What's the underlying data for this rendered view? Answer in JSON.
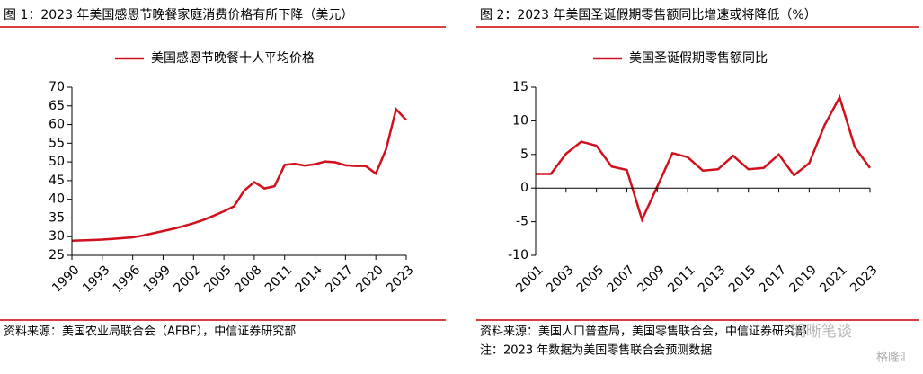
{
  "chart_data": [
    {
      "type": "line",
      "title": "图 1：2023 年美国感恩节晚餐家庭消费价格有所下降（美元）",
      "x": [
        1990,
        1991,
        1992,
        1993,
        1994,
        1995,
        1996,
        1997,
        1998,
        1999,
        2000,
        2001,
        2002,
        2003,
        2004,
        2005,
        2006,
        2007,
        2008,
        2009,
        2010,
        2011,
        2012,
        2013,
        2014,
        2015,
        2016,
        2017,
        2018,
        2019,
        2020,
        2021,
        2022,
        2023
      ],
      "series": [
        {
          "name": "美国感恩节晚餐十人平均价格",
          "color": "#d0101c",
          "values": [
            28.9,
            29.0,
            29.1,
            29.2,
            29.4,
            29.6,
            29.8,
            30.3,
            30.9,
            31.5,
            32.1,
            32.8,
            33.6,
            34.5,
            35.6,
            36.8,
            38.1,
            42.3,
            44.6,
            42.9,
            43.5,
            49.2,
            49.5,
            49.0,
            49.4,
            50.1,
            49.9,
            49.1,
            48.9,
            48.9,
            46.9,
            53.3,
            64.1,
            61.2
          ]
        }
      ],
      "xlim": [
        1990,
        2023
      ],
      "xticks": [
        1990,
        1993,
        1996,
        1999,
        2002,
        2005,
        2008,
        2011,
        2014,
        2017,
        2020,
        2023
      ],
      "ylim": [
        25,
        70
      ],
      "yticks": [
        25,
        30,
        35,
        40,
        45,
        50,
        55,
        60,
        65,
        70
      ],
      "source": "资料来源：美国农业局联合会（AFBF），中信证券研究部"
    },
    {
      "type": "line",
      "title": "图 2：2023 年美国圣诞假期零售额同比增速或将降低（%）",
      "x": [
        2001,
        2002,
        2003,
        2004,
        2005,
        2006,
        2007,
        2008,
        2009,
        2010,
        2011,
        2012,
        2013,
        2014,
        2015,
        2016,
        2017,
        2018,
        2019,
        2020,
        2021,
        2022,
        2023
      ],
      "series": [
        {
          "name": "美国圣诞假期零售额同比",
          "color": "#d0101c",
          "values": [
            2.1,
            2.1,
            5.1,
            6.9,
            6.3,
            3.2,
            2.7,
            -4.7,
            0.2,
            5.2,
            4.6,
            2.6,
            2.8,
            4.8,
            2.8,
            3.0,
            5.0,
            1.9,
            3.7,
            9.3,
            13.5,
            6.1,
            3.0
          ]
        }
      ],
      "xlim": [
        2001,
        2023
      ],
      "xticks": [
        2001,
        2003,
        2005,
        2007,
        2009,
        2011,
        2013,
        2015,
        2017,
        2019,
        2021,
        2023
      ],
      "ylim": [
        -10,
        15
      ],
      "yticks": [
        -10,
        -5,
        0,
        5,
        10,
        15
      ],
      "source": "资料来源：美国人口普查局，美国零售联合会，中信证券研究部",
      "note": "注：2023 年数据为美国零售联合会预测数据"
    }
  ],
  "watermark": [
    "明晰笔谈",
    "格隆汇"
  ]
}
